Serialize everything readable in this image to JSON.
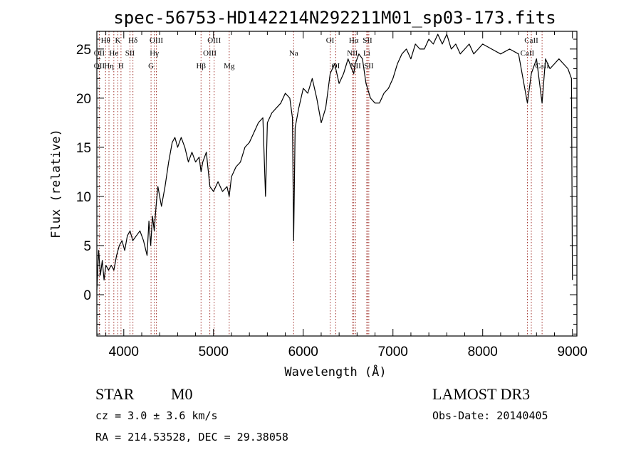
{
  "chart_data": {
    "type": "line",
    "title": "spec-56753-HD142214N292211M01_sp03-173.fits",
    "xlabel": "Wavelength (Å)",
    "ylabel": "Flux (relative)",
    "xlim": [
      3700,
      9050
    ],
    "ylim": [
      -4.2,
      26.8
    ],
    "xticks": [
      4000,
      5000,
      6000,
      7000,
      8000,
      9000
    ],
    "yticks": [
      0,
      5,
      10,
      15,
      20,
      25
    ],
    "series": [
      {
        "name": "flux",
        "x": [
          3700,
          3720,
          3740,
          3760,
          3780,
          3800,
          3830,
          3860,
          3890,
          3920,
          3950,
          3980,
          4010,
          4040,
          4070,
          4100,
          4140,
          4180,
          4220,
          4260,
          4280,
          4300,
          4320,
          4340,
          4360,
          4380,
          4420,
          4460,
          4500,
          4540,
          4570,
          4600,
          4640,
          4680,
          4720,
          4760,
          4800,
          4840,
          4861,
          4880,
          4920,
          4960,
          5000,
          5050,
          5100,
          5150,
          5175,
          5200,
          5250,
          5300,
          5350,
          5400,
          5450,
          5500,
          5550,
          5580,
          5600,
          5650,
          5700,
          5750,
          5800,
          5850,
          5880,
          5893,
          5910,
          5950,
          6000,
          6050,
          6100,
          6150,
          6200,
          6250,
          6300,
          6350,
          6400,
          6450,
          6500,
          6540,
          6563,
          6580,
          6620,
          6660,
          6700,
          6750,
          6800,
          6850,
          6900,
          6950,
          7000,
          7050,
          7100,
          7150,
          7200,
          7250,
          7300,
          7350,
          7400,
          7450,
          7500,
          7550,
          7600,
          7650,
          7700,
          7750,
          7800,
          7850,
          7900,
          7950,
          8000,
          8100,
          8200,
          8300,
          8400,
          8498,
          8542,
          8600,
          8662,
          8700,
          8750,
          8800,
          8850,
          8900,
          8950,
          8990,
          9000
        ],
        "y": [
          0.5,
          4.5,
          2.0,
          3.5,
          1.5,
          3.0,
          2.5,
          3.0,
          2.5,
          4.0,
          5.0,
          5.5,
          4.5,
          6.0,
          6.5,
          5.5,
          6.0,
          6.5,
          5.5,
          4.0,
          7.5,
          5.0,
          8.0,
          6.5,
          9.0,
          11.0,
          9.0,
          11.0,
          13.5,
          15.5,
          16.0,
          15.0,
          16.0,
          15.0,
          13.5,
          14.5,
          13.5,
          14.0,
          12.5,
          13.5,
          14.5,
          11.0,
          10.5,
          11.5,
          10.5,
          11.0,
          10.0,
          12.0,
          13.0,
          13.5,
          15.0,
          15.5,
          16.5,
          17.5,
          18.0,
          10.0,
          17.5,
          18.5,
          19.0,
          19.5,
          20.5,
          20.0,
          18.0,
          5.5,
          17.0,
          19.0,
          21.0,
          20.5,
          22.0,
          20.0,
          17.5,
          19.0,
          22.5,
          23.5,
          21.5,
          22.5,
          24.0,
          23.0,
          22.5,
          23.5,
          24.5,
          24.0,
          21.5,
          20.0,
          19.5,
          19.5,
          20.5,
          21.0,
          22.0,
          23.5,
          24.5,
          25.0,
          24.0,
          25.5,
          25.0,
          25.0,
          26.0,
          25.5,
          26.5,
          25.5,
          26.5,
          25.0,
          25.5,
          24.5,
          25.0,
          25.5,
          24.5,
          25.0,
          25.5,
          25.0,
          24.5,
          25.0,
          24.5,
          19.5,
          22.5,
          24.0,
          19.5,
          24.0,
          23.0,
          23.5,
          24.0,
          23.5,
          23.0,
          22.0,
          1.5
        ]
      }
    ],
    "spectral_lines": [
      {
        "label": "Hθ",
        "x": 3797,
        "row": 0
      },
      {
        "label": "OII",
        "x": 3727,
        "row": 1
      },
      {
        "label": "OII",
        "x": 3727,
        "row": 2
      },
      {
        "label": "Hη",
        "x": 3835,
        "row": 2
      },
      {
        "label": "K",
        "x": 3934,
        "row": 0
      },
      {
        "label": "He",
        "x": 3889,
        "row": 1
      },
      {
        "label": "SII",
        "x": 4069,
        "row": 1
      },
      {
        "label": "H",
        "x": 3969,
        "row": 2
      },
      {
        "label": "Hδ",
        "x": 4102,
        "row": 0
      },
      {
        "label": "OIII",
        "x": 4363,
        "row": 0
      },
      {
        "label": "Hγ",
        "x": 4340,
        "row": 1
      },
      {
        "label": "G",
        "x": 4304,
        "row": 2
      },
      {
        "label": "OIII",
        "x": 5007,
        "row": 0
      },
      {
        "label": "OIII",
        "x": 4959,
        "row": 1
      },
      {
        "label": "Hβ",
        "x": 4861,
        "row": 2
      },
      {
        "label": "Mg",
        "x": 5175,
        "row": 2
      },
      {
        "label": "Na",
        "x": 5893,
        "row": 1
      },
      {
        "label": "OI",
        "x": 6300,
        "row": 0
      },
      {
        "label": "OI",
        "x": 6363,
        "row": 2
      },
      {
        "label": "Hα",
        "x": 6563,
        "row": 0
      },
      {
        "label": "SII",
        "x": 6716,
        "row": 0
      },
      {
        "label": "NII",
        "x": 6548,
        "row": 1
      },
      {
        "label": "Li",
        "x": 6708,
        "row": 1
      },
      {
        "label": "NII",
        "x": 6583,
        "row": 2
      },
      {
        "label": "SII",
        "x": 6731,
        "row": 2
      },
      {
        "label": "CaII",
        "x": 8542,
        "row": 0
      },
      {
        "label": "CaII",
        "x": 8498,
        "row": 1
      },
      {
        "label": "CaII",
        "x": 8662,
        "row": 2
      }
    ]
  },
  "info": {
    "class_label": "STAR",
    "subclass": "M0",
    "redshift_text": "cz = 3.0 ± 3.6 km/s",
    "coords_text": "RA = 214.53528, DEC =  29.38058",
    "survey": "LAMOST DR3",
    "obs_date": "Obs-Date: 20140405"
  },
  "colors": {
    "line": "#000000",
    "marker": "#a0302a",
    "axis": "#000000"
  }
}
